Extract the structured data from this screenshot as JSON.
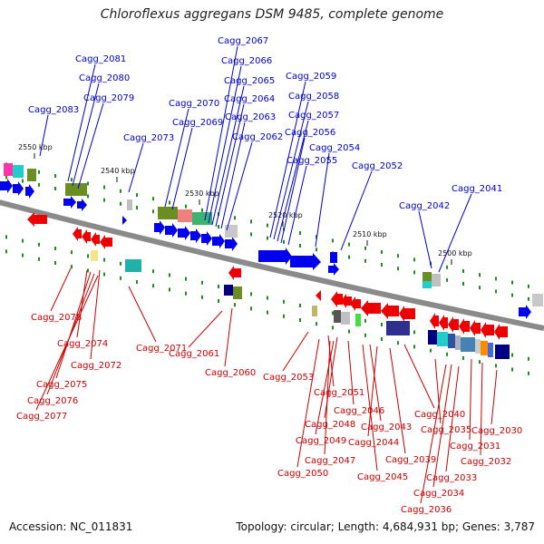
{
  "title": "Chloroflexus aggregans DSM 9485, complete genome",
  "accession": "Accession: NC_011831",
  "summary": "Topology: circular; Length: 4,684,931 bp; Genes: 3,787",
  "colors": {
    "backbone": "#8a8a8a",
    "forward_gene": "#0000ee",
    "reverse_gene": "#ee0000",
    "forward_label": "#0000cc",
    "reverse_label": "#cc0000",
    "tick": "#228b22"
  },
  "scale_labels": [
    "2550 kbp",
    "2540 kbp",
    "2530 kbp",
    "2520 kbp",
    "2510 kbp",
    "2500 kbp"
  ],
  "forward_labels": [
    "Cagg_2083",
    "Cagg_2081",
    "Cagg_2080",
    "Cagg_2079",
    "Cagg_2073",
    "Cagg_2070",
    "Cagg_2069",
    "Cagg_2067",
    "Cagg_2066",
    "Cagg_2065",
    "Cagg_2064",
    "Cagg_2063",
    "Cagg_2062",
    "Cagg_2059",
    "Cagg_2058",
    "Cagg_2057",
    "Cagg_2056",
    "Cagg_2054",
    "Cagg_2055",
    "Cagg_2052",
    "Cagg_2042",
    "Cagg_2041"
  ],
  "reverse_labels": [
    "Cagg_2078",
    "Cagg_2074",
    "Cagg_2071",
    "Cagg_2072",
    "Cagg_2075",
    "Cagg_2076",
    "Cagg_2077",
    "Cagg_2061",
    "Cagg_2060",
    "Cagg_2053",
    "Cagg_2051",
    "Cagg_2046",
    "Cagg_2048",
    "Cagg_2040",
    "Cagg_2043",
    "Cagg_2049",
    "Cagg_2044",
    "Cagg_2035",
    "Cagg_2030",
    "Cagg_2031",
    "Cagg_2047",
    "Cagg_2039",
    "Cagg_2032",
    "Cagg_2045",
    "Cagg_2050",
    "Cagg_2033",
    "Cagg_2034",
    "Cagg_2036"
  ]
}
